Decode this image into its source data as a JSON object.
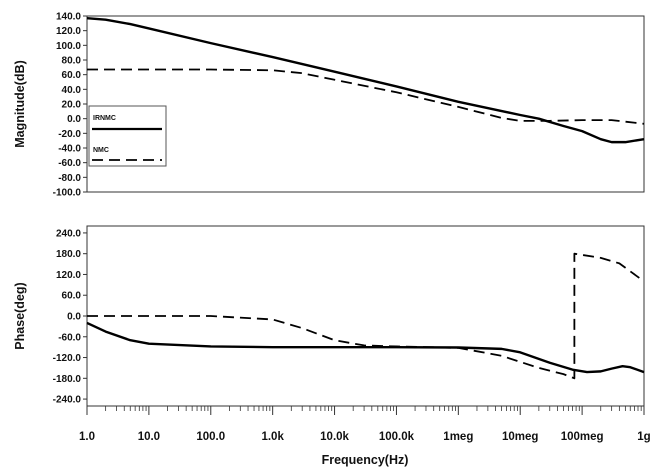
{
  "chart_data": [
    {
      "type": "line",
      "panel": "magnitude",
      "ylabel": "Magnitude(dB)",
      "xlabel": "",
      "x_scale": "log",
      "xlim_hz": [
        1,
        1000000000
      ],
      "ylim": [
        -100,
        140
      ],
      "y_ticks": [
        140,
        120,
        100,
        80,
        60,
        40,
        20,
        0,
        -20,
        -40,
        -60,
        -80,
        -100
      ],
      "y_tick_labels": [
        "140.0",
        "120.0",
        "100.0",
        "80.0",
        "60.0",
        "40.0",
        "20.0",
        "0.0",
        "-20.0",
        "-40.0",
        "-60.0",
        "-80.0",
        "-100.0"
      ],
      "grid": false,
      "legend_position": "left",
      "legend": [
        "IRNMC",
        "NMC"
      ],
      "series": [
        {
          "name": "IRNMC",
          "style": "solid",
          "points": [
            [
              1,
              137
            ],
            [
              2,
              135
            ],
            [
              5,
              129
            ],
            [
              10,
              123
            ],
            [
              100,
              103
            ],
            [
              1000,
              84
            ],
            [
              10000,
              64
            ],
            [
              100000,
              44
            ],
            [
              1000000,
              23
            ],
            [
              10000000,
              5
            ],
            [
              20000000,
              0
            ],
            [
              50000000,
              -10
            ],
            [
              100000000,
              -17
            ],
            [
              200000000,
              -28
            ],
            [
              300000000,
              -32
            ],
            [
              500000000,
              -32
            ],
            [
              1000000000,
              -28
            ]
          ]
        },
        {
          "name": "NMC",
          "style": "dashed",
          "points": [
            [
              1,
              67
            ],
            [
              100,
              67
            ],
            [
              1000,
              66
            ],
            [
              3000,
              62
            ],
            [
              10000,
              53
            ],
            [
              100000,
              36
            ],
            [
              1000000,
              16
            ],
            [
              5000000,
              1
            ],
            [
              10000000,
              -3
            ],
            [
              30000000,
              -3
            ],
            [
              100000000,
              -2
            ],
            [
              300000000,
              -2
            ],
            [
              1000000000,
              -7
            ]
          ]
        }
      ]
    },
    {
      "type": "line",
      "panel": "phase",
      "ylabel": "Phase(deg)",
      "xlabel": "Frequency(Hz)",
      "x_scale": "log",
      "xlim_hz": [
        1,
        1000000000
      ],
      "ylim": [
        -260,
        260
      ],
      "y_ticks": [
        240,
        180,
        120,
        60,
        0,
        -60,
        -120,
        -180,
        -240
      ],
      "y_tick_labels": [
        "240.0",
        "180.0",
        "120.0",
        "60.0",
        "0.0",
        "-60.0",
        "-120.0",
        "-180.0",
        "-240.0"
      ],
      "x_tick_values": [
        1,
        10,
        100,
        1000,
        10000,
        100000,
        1000000,
        10000000,
        100000000,
        1000000000
      ],
      "x_tick_labels": [
        "1.0",
        "10.0",
        "100.0",
        "1.0k",
        "10.0k",
        "100.0k",
        "1meg",
        "10meg",
        "100meg",
        "1g"
      ],
      "grid": false,
      "series": [
        {
          "name": "IRNMC",
          "style": "solid",
          "points": [
            [
              1,
              -20
            ],
            [
              2,
              -45
            ],
            [
              5,
              -70
            ],
            [
              10,
              -80
            ],
            [
              100,
              -88
            ],
            [
              1000,
              -90
            ],
            [
              10000,
              -90
            ],
            [
              100000,
              -90
            ],
            [
              1000000,
              -91
            ],
            [
              5000000,
              -95
            ],
            [
              10000000,
              -105
            ],
            [
              30000000,
              -135
            ],
            [
              70000000,
              -155
            ],
            [
              120000000,
              -162
            ],
            [
              200000000,
              -160
            ],
            [
              300000000,
              -152
            ],
            [
              450000000,
              -145
            ],
            [
              600000000,
              -148
            ],
            [
              1000000000,
              -162
            ]
          ]
        },
        {
          "name": "NMC",
          "style": "dashed",
          "points": [
            [
              1,
              0
            ],
            [
              100,
              0
            ],
            [
              1000,
              -10
            ],
            [
              3000,
              -35
            ],
            [
              10000,
              -70
            ],
            [
              30000,
              -85
            ],
            [
              100000,
              -88
            ],
            [
              1000000,
              -92
            ],
            [
              5000000,
              -115
            ],
            [
              20000000,
              -150
            ],
            [
              50000000,
              -168
            ],
            [
              75000000,
              -180
            ],
            [
              75000001,
              180
            ],
            [
              200000000,
              168
            ],
            [
              400000000,
              152
            ],
            [
              1000000000,
              100
            ]
          ]
        }
      ]
    }
  ]
}
